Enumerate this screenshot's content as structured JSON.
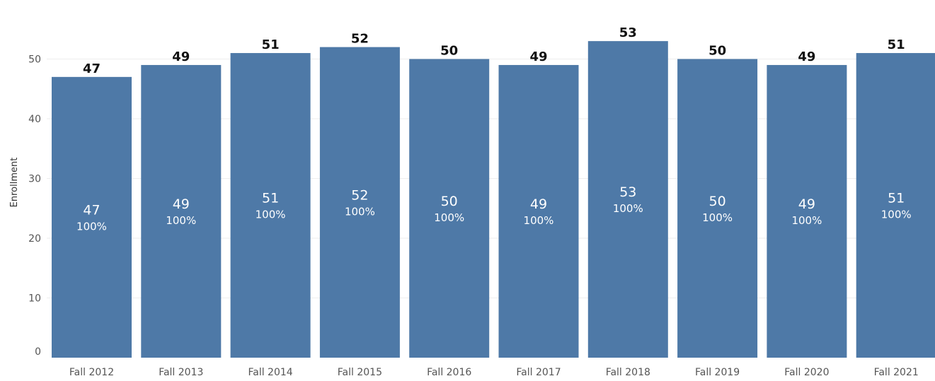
{
  "chart_data": {
    "type": "bar",
    "categories": [
      "Fall 2012",
      "Fall 2013",
      "Fall 2014",
      "Fall 2015",
      "Fall 2016",
      "Fall 2017",
      "Fall 2018",
      "Fall 2019",
      "Fall 2020",
      "Fall 2021"
    ],
    "values": [
      47,
      49,
      51,
      52,
      50,
      49,
      53,
      50,
      49,
      51
    ],
    "percent_labels": [
      "100%",
      "100%",
      "100%",
      "100%",
      "100%",
      "100%",
      "100%",
      "100%",
      "100%",
      "100%"
    ],
    "ylabel": "Enrollment",
    "ylim": [
      0,
      50
    ],
    "yticks": [
      0,
      10,
      20,
      30,
      40,
      50
    ],
    "grid": true,
    "bar_color": "#4e79a7"
  }
}
